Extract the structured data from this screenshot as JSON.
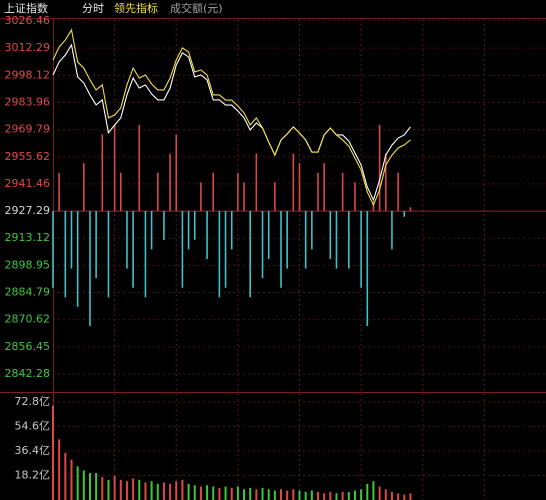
{
  "header": {
    "title": "上证指数",
    "tabs": [
      "分时",
      "领先指标",
      "成交额(元)"
    ]
  },
  "chart_data": [
    {
      "type": "line",
      "x": [
        0,
        3,
        6,
        9,
        12,
        15,
        18,
        21,
        24,
        27,
        30,
        33,
        36,
        39,
        42,
        45,
        48,
        51,
        54,
        57,
        60,
        63,
        66,
        69,
        72,
        75,
        78,
        81,
        84,
        87,
        90,
        93,
        96,
        99,
        102,
        105,
        108,
        111,
        114,
        117,
        120,
        123,
        126,
        129,
        132,
        135,
        138,
        141,
        144,
        147,
        150,
        153,
        156,
        159,
        162,
        165,
        168,
        171,
        174
      ],
      "xlim": [
        0,
        240
      ],
      "ylim": [
        2842.28,
        3026.46
      ],
      "yticks": [
        3026.46,
        3012.29,
        2998.12,
        2983.96,
        2969.79,
        2955.62,
        2941.46,
        2927.29,
        2913.12,
        2898.95,
        2884.79,
        2870.62,
        2856.45,
        2842.28
      ],
      "baseline": 2927.29,
      "up_color": "#e04848",
      "flat_color": "#d8d8d8",
      "down_color": "#3cc83c",
      "grid": true,
      "series": [
        {
          "color": "#ffffff",
          "values": [
            2998.3,
            3005.1,
            3008.7,
            3014.0,
            2997.3,
            2994.1,
            2987.9,
            2982.7,
            2985.3,
            2968.1,
            2972.2,
            2975.9,
            2987.9,
            2996.7,
            2991.5,
            2993.1,
            2988.4,
            2985.3,
            2985.3,
            2991.5,
            3003.5,
            3009.8,
            3007.7,
            2997.3,
            2998.3,
            2995.7,
            2985.3,
            2985.3,
            2982.6,
            2982.6,
            2979.5,
            2975.9,
            2969.6,
            2973.3,
            2970.6,
            2963.3,
            2956.5,
            2964.4,
            2967.5,
            2971.2,
            2968.0,
            2964.4,
            2958.1,
            2958.1,
            2967.0,
            2970.6,
            2967.0,
            2967.0,
            2963.8,
            2957.6,
            2951.3,
            2939.8,
            2933.1,
            2943.5,
            2956.5,
            2961.7,
            2965.4,
            2967.0,
            2971.2
          ]
        },
        {
          "color": "#f0e040",
          "values": [
            3006.1,
            3012.9,
            3016.5,
            3021.8,
            3005.1,
            3001.9,
            2995.7,
            2990.5,
            2993.1,
            2975.9,
            2977.4,
            2981.1,
            2993.1,
            3001.9,
            2996.7,
            2998.3,
            2993.6,
            2990.5,
            2990.5,
            2996.7,
            3006.1,
            3012.4,
            3010.3,
            2999.9,
            3000.9,
            2998.3,
            2987.9,
            2987.9,
            2985.2,
            2985.2,
            2982.1,
            2978.5,
            2972.2,
            2975.9,
            2970.6,
            2963.3,
            2956.5,
            2964.4,
            2967.5,
            2971.2,
            2968.0,
            2964.4,
            2958.1,
            2958.1,
            2967.0,
            2970.6,
            2967.0,
            2964.4,
            2961.2,
            2955.0,
            2948.7,
            2937.2,
            2930.5,
            2938.3,
            2951.3,
            2956.5,
            2960.2,
            2961.8,
            2964.4
          ]
        }
      ],
      "bars": {
        "up_color": "#d84848",
        "down_color": "#40c0c8",
        "values": [
          -40,
          20,
          -45,
          -30,
          -50,
          25,
          -60,
          -35,
          40,
          -45,
          45,
          20,
          -30,
          -40,
          45,
          -45,
          -20,
          20,
          -15,
          30,
          40,
          -40,
          -20,
          -15,
          15,
          -25,
          20,
          -45,
          -40,
          -20,
          20,
          15,
          -45,
          30,
          -35,
          -25,
          15,
          -40,
          -30,
          30,
          25,
          -30,
          -20,
          20,
          25,
          -25,
          -30,
          20,
          -30,
          15,
          -40,
          -60,
          5,
          45,
          30,
          -20,
          20,
          -3,
          2
        ]
      }
    },
    {
      "type": "bar",
      "ylim": [
        0,
        72.8
      ],
      "yticks": [
        {
          "value": 72.8,
          "label": "72.8亿"
        },
        {
          "value": 54.6,
          "label": "54.6亿"
        },
        {
          "value": 36.4,
          "label": "36.4亿"
        },
        {
          "value": 18.2,
          "label": "18.2亿"
        }
      ],
      "up_color": "#e04848",
      "down_color": "#3cc83c",
      "values": [
        70,
        45,
        35,
        30,
        25,
        22,
        20,
        20,
        17,
        15,
        18,
        15,
        14,
        16,
        15,
        13,
        14,
        12,
        13,
        12,
        14,
        15,
        12,
        11,
        10,
        11,
        10,
        9,
        10,
        9,
        10,
        8,
        9,
        8,
        9,
        8,
        7,
        8,
        7,
        8,
        7,
        6,
        7,
        6,
        5,
        6,
        5,
        6,
        6,
        7,
        8,
        12,
        14,
        10,
        8,
        6,
        5,
        4,
        5
      ]
    }
  ]
}
